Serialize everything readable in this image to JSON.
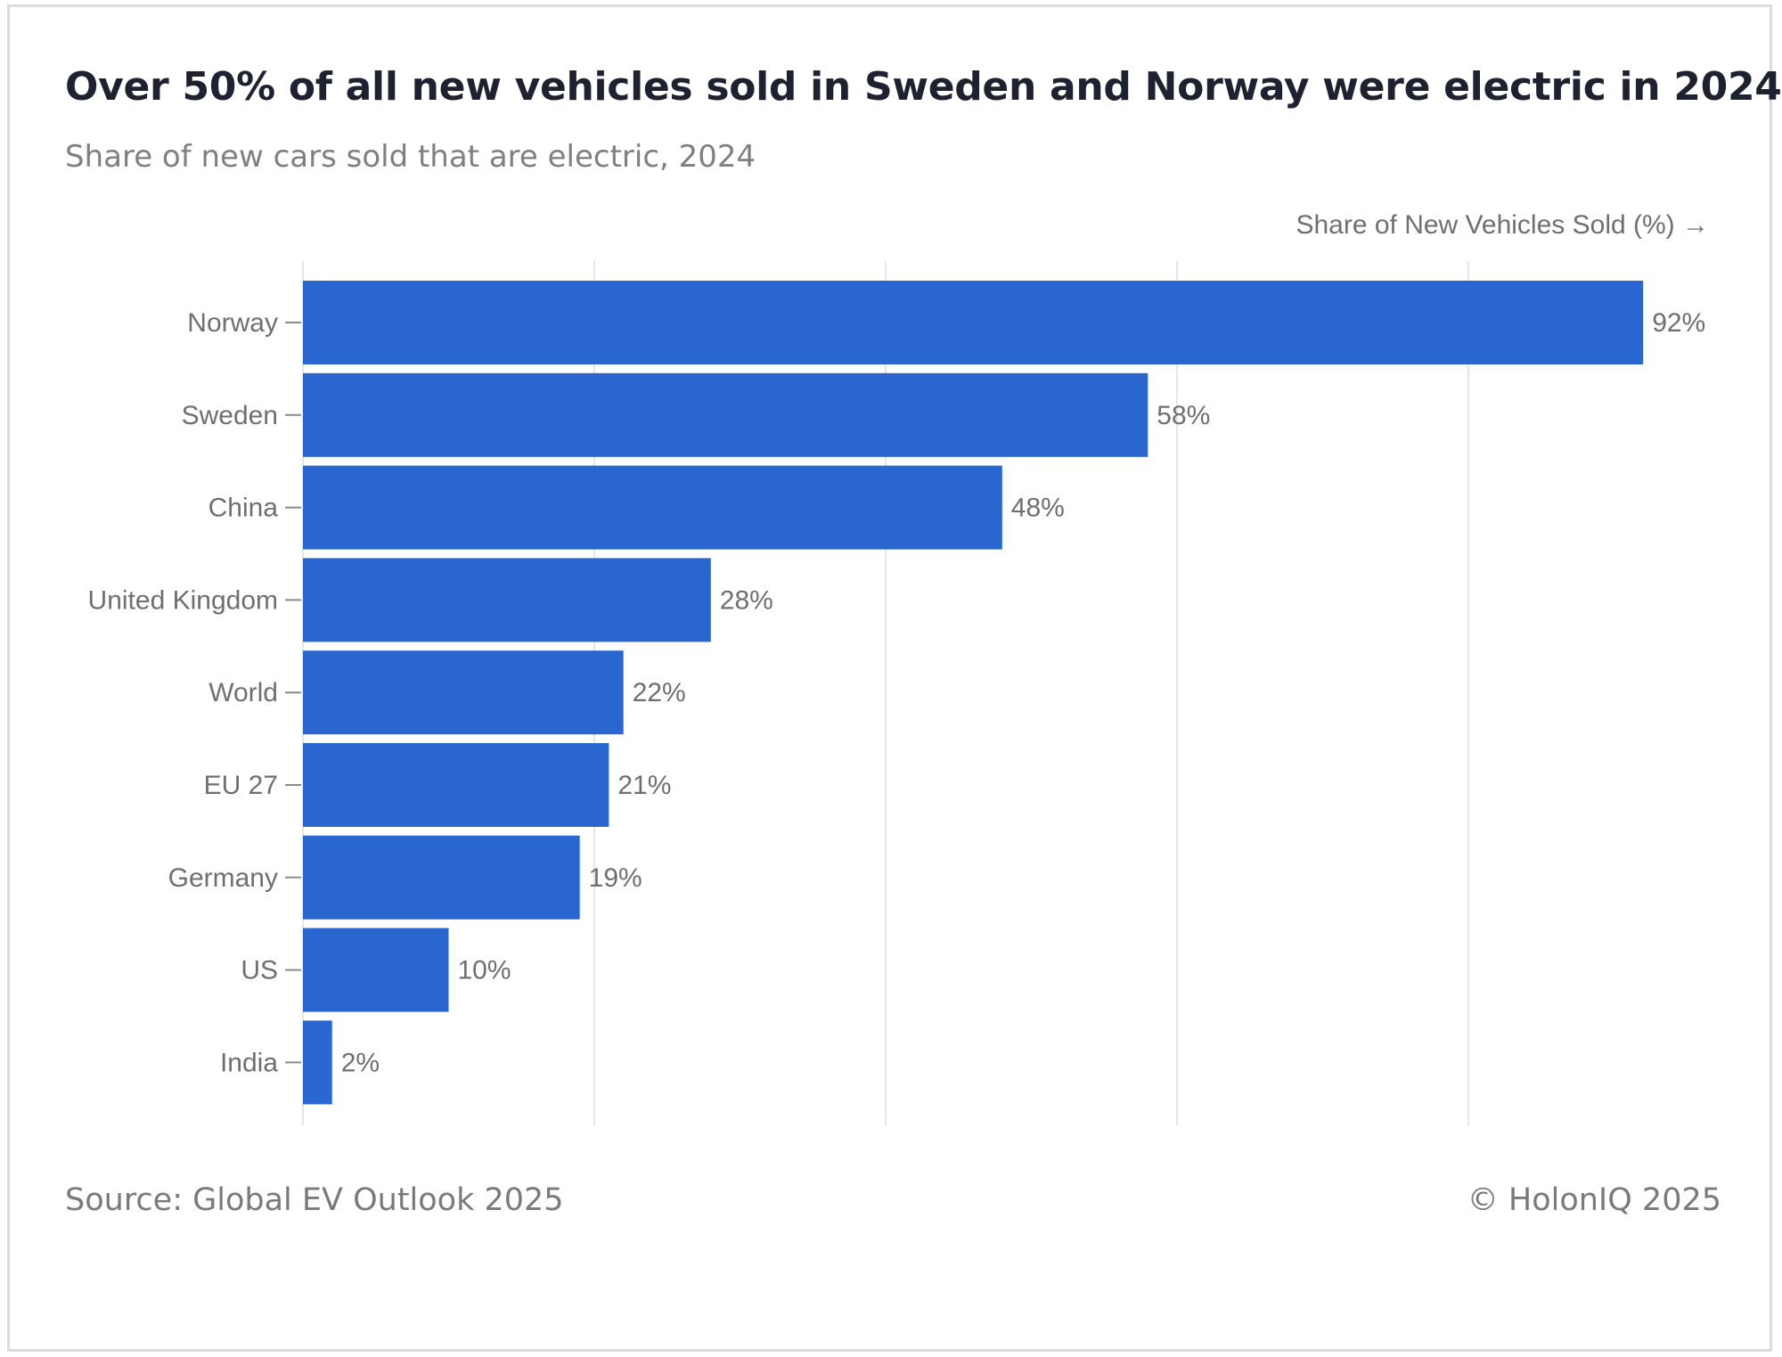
{
  "header": {
    "title": "Over 50% of all new vehicles sold in Sweden and Norway were electric in 2024",
    "subtitle": "Share of new cars sold that are electric, 2024"
  },
  "footer": {
    "source": "Source: Global EV Outlook 2025",
    "credit": "© HolonIQ 2025"
  },
  "colors": {
    "bar": "#2a66cf",
    "grid": "#e6e6e6",
    "text": "#6f6f6f"
  },
  "chart_data": {
    "type": "bar",
    "orientation": "horizontal",
    "title": "Over 50% of all new vehicles sold in Sweden and Norway were electric in 2024",
    "subtitle": "Share of new cars sold that are electric, 2024",
    "xlabel": "Share of New Vehicles Sold (%) →",
    "ylabel": "",
    "categories": [
      "Norway",
      "Sweden",
      "China",
      "United Kingdom",
      "World",
      "EU 27",
      "Germany",
      "US",
      "India"
    ],
    "values": [
      92,
      58,
      48,
      28,
      22,
      21,
      19,
      10,
      2
    ],
    "value_labels": [
      "92%",
      "58%",
      "48%",
      "28%",
      "22%",
      "21%",
      "19%",
      "10%",
      "2%"
    ],
    "xlim": [
      0,
      100
    ],
    "grid": true,
    "grid_values": [
      0,
      20,
      40,
      60,
      80
    ],
    "legend": "none"
  }
}
